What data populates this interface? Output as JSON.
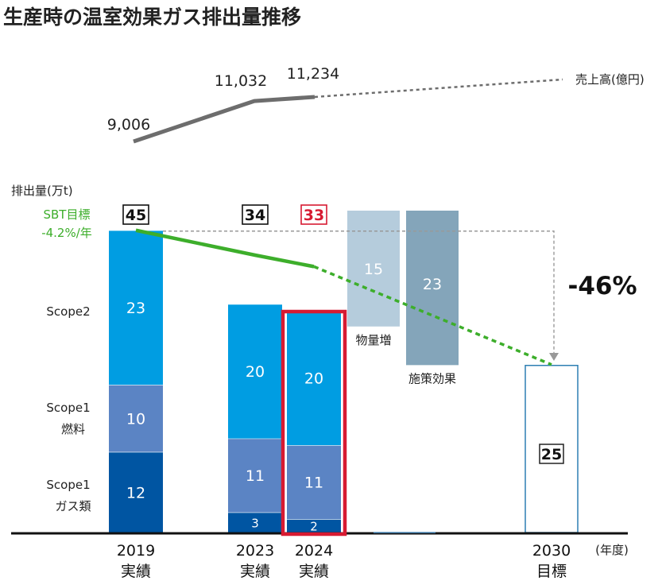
{
  "title": "生産時の温室効果ガス排出量推移",
  "chart_data": {
    "type": "bar",
    "units": {
      "emissions": "排出量(万t)",
      "sales": "売上高(億円)",
      "year": "(年度)"
    },
    "categories": [
      {
        "year": "2019",
        "label": "実績"
      },
      {
        "year": "2023",
        "label": "実績"
      },
      {
        "year": "2024",
        "label": "実績"
      },
      {
        "year": "2030",
        "label": "目標"
      }
    ],
    "stacks": [
      {
        "name": "Scope1 ガス類",
        "label_line1": "Scope1",
        "label_line2": "ガス類",
        "color": "#0055a2",
        "values": [
          12,
          3,
          2
        ]
      },
      {
        "name": "Scope1 燃料",
        "label_line1": "Scope1",
        "label_line2": "燃料",
        "color": "#5b84c4",
        "values": [
          10,
          11,
          11
        ]
      },
      {
        "name": "Scope2",
        "label_line1": "Scope2",
        "label_line2": "",
        "color": "#009de2",
        "values": [
          23,
          20,
          20
        ]
      }
    ],
    "totals": [
      "45",
      "34",
      "33"
    ],
    "target_2030": "25",
    "waterfall": [
      {
        "label": "物量増",
        "value": 15,
        "color": "#b5ccdc"
      },
      {
        "label": "施策効果",
        "value": 23,
        "color": "#84a5ba"
      }
    ],
    "reduction_label": "-46%",
    "sbt_label_1": "SBT目標",
    "sbt_label_2": "-4.2%/年",
    "sbt_color": "#3dae2b",
    "sbt_line": [
      45,
      41.3,
      39.6,
      25
    ],
    "sales": {
      "label": "売上高(億円)",
      "values": [
        9006,
        11032,
        11234
      ],
      "labels": [
        "9,006",
        "11,032",
        "11,234"
      ],
      "color": "#6d6d6d"
    },
    "highlight_year": "2024",
    "highlight_color": "#d71a32"
  }
}
